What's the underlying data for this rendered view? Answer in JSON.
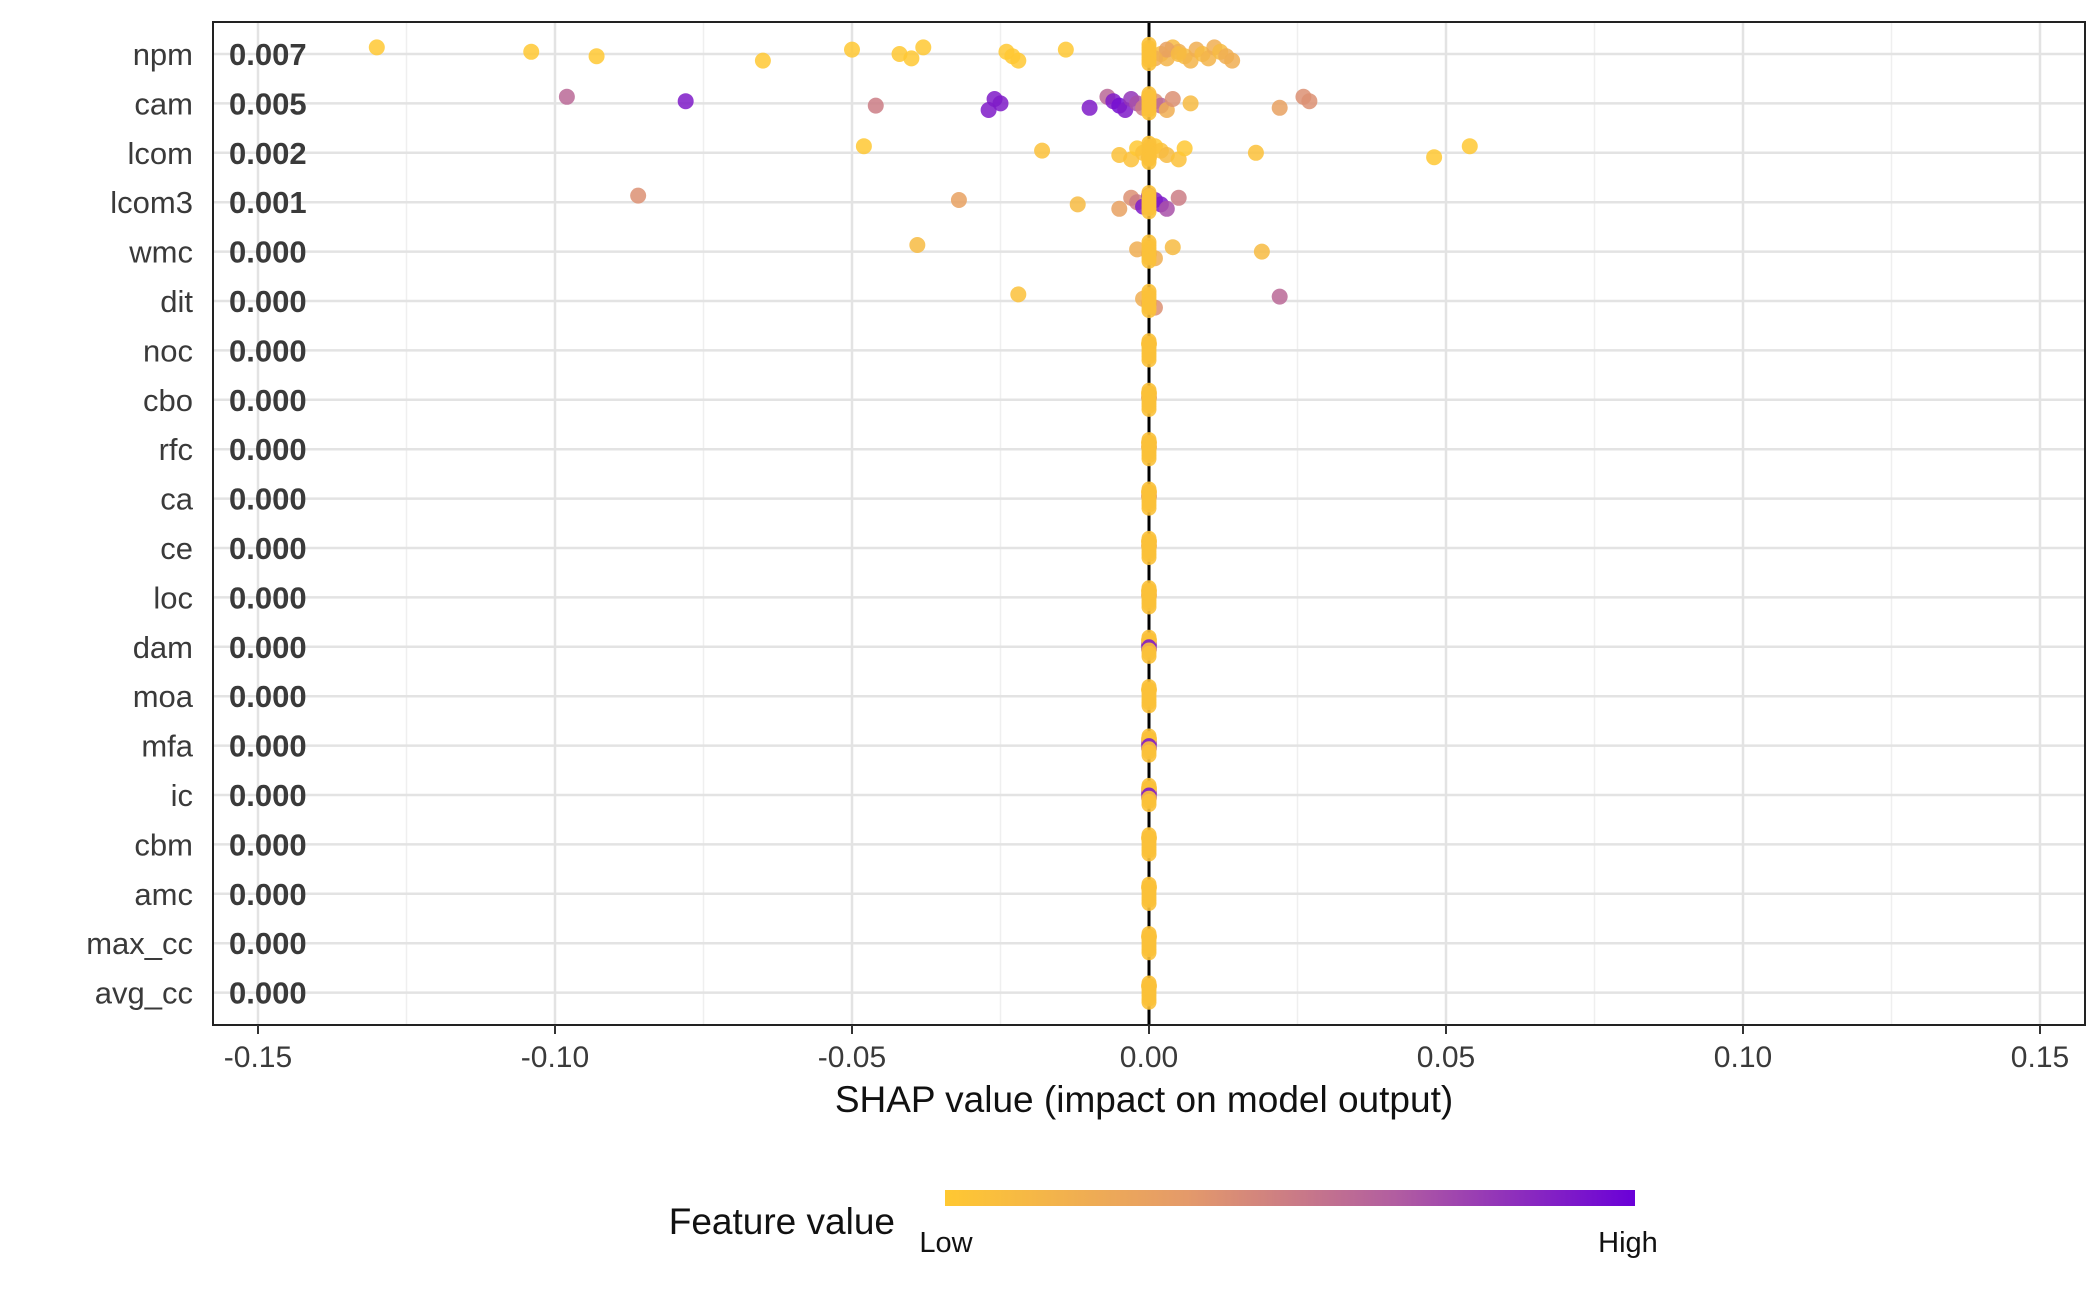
{
  "chart_data": {
    "type": "scatter",
    "subtype": "shap-beeswarm",
    "xlabel": "SHAP value (impact on model output)",
    "xlim": [
      -0.15,
      0.15
    ],
    "x_ticks": [
      -0.15,
      -0.1,
      -0.05,
      0.0,
      0.05,
      0.1,
      0.15
    ],
    "x_tick_labels": [
      "-0.15",
      "-0.10",
      "-0.05",
      "0.00",
      "0.05",
      "0.10",
      "0.15"
    ],
    "grid": true,
    "zero_line": true,
    "legend": {
      "title": "Feature value",
      "low_label": "Low",
      "high_label": "High",
      "placement": "bottom",
      "low_color": "#FFC832",
      "high_color": "#6A00D8"
    },
    "features": [
      {
        "name": "npm",
        "mean_abs_shap": "0.007",
        "points": [
          [
            -0.13,
            0.0
          ],
          [
            -0.104,
            0.0
          ],
          [
            -0.093,
            0.0
          ],
          [
            -0.065,
            0.0
          ],
          [
            -0.05,
            0.0
          ],
          [
            -0.042,
            0.0
          ],
          [
            -0.04,
            0.0
          ],
          [
            -0.038,
            0.0
          ],
          [
            -0.024,
            0.0
          ],
          [
            -0.023,
            0.0
          ],
          [
            -0.022,
            0.0
          ],
          [
            -0.014,
            0.0
          ],
          [
            0.002,
            0.1
          ],
          [
            0.003,
            0.15
          ],
          [
            0.004,
            0.1
          ],
          [
            0.005,
            0.2
          ],
          [
            0.006,
            0.1
          ],
          [
            0.007,
            0.15
          ],
          [
            0.008,
            0.2
          ],
          [
            0.009,
            0.1
          ],
          [
            0.01,
            0.15
          ],
          [
            0.011,
            0.2
          ],
          [
            0.012,
            0.1
          ],
          [
            0.013,
            0.2
          ],
          [
            0.014,
            0.2
          ],
          [
            0.003,
            0.3
          ],
          [
            0.005,
            0.1
          ],
          [
            0.001,
            0.2
          ]
        ]
      },
      {
        "name": "cam",
        "mean_abs_shap": "0.005",
        "points": [
          [
            -0.098,
            0.6
          ],
          [
            -0.078,
            0.9
          ],
          [
            -0.046,
            0.5
          ],
          [
            -0.027,
            0.9
          ],
          [
            -0.026,
            0.9
          ],
          [
            -0.025,
            0.9
          ],
          [
            -0.01,
            0.9
          ],
          [
            -0.007,
            0.6
          ],
          [
            -0.006,
            0.9
          ],
          [
            -0.005,
            0.95
          ],
          [
            -0.004,
            0.9
          ],
          [
            -0.003,
            0.8
          ],
          [
            -0.002,
            0.7
          ],
          [
            -0.001,
            0.5
          ],
          [
            0.0,
            0.3
          ],
          [
            0.001,
            0.4
          ],
          [
            0.002,
            0.6
          ],
          [
            0.003,
            0.2
          ],
          [
            0.004,
            0.4
          ],
          [
            0.007,
            0.1
          ],
          [
            0.022,
            0.3
          ],
          [
            0.026,
            0.4
          ],
          [
            0.027,
            0.4
          ]
        ]
      },
      {
        "name": "lcom",
        "mean_abs_shap": "0.002",
        "points": [
          [
            -0.048,
            0.0
          ],
          [
            -0.018,
            0.05
          ],
          [
            -0.005,
            0.05
          ],
          [
            -0.003,
            0.05
          ],
          [
            -0.002,
            0.0
          ],
          [
            -0.001,
            0.05
          ],
          [
            0.0,
            0.1
          ],
          [
            0.001,
            0.0
          ],
          [
            0.002,
            0.05
          ],
          [
            0.003,
            0.1
          ],
          [
            0.005,
            0.05
          ],
          [
            0.006,
            0.0
          ],
          [
            0.018,
            0.05
          ],
          [
            0.048,
            0.0
          ],
          [
            0.054,
            0.0
          ]
        ]
      },
      {
        "name": "lcom3",
        "mean_abs_shap": "0.001",
        "points": [
          [
            -0.086,
            0.4
          ],
          [
            -0.032,
            0.3
          ],
          [
            -0.012,
            0.1
          ],
          [
            -0.005,
            0.3
          ],
          [
            -0.003,
            0.4
          ],
          [
            -0.002,
            0.5
          ],
          [
            -0.001,
            0.9
          ],
          [
            0.0,
            0.95
          ],
          [
            0.001,
            0.9
          ],
          [
            0.002,
            0.9
          ],
          [
            0.003,
            0.7
          ],
          [
            0.005,
            0.5
          ]
        ]
      },
      {
        "name": "wmc",
        "mean_abs_shap": "0.000",
        "points": [
          [
            -0.039,
            0.1
          ],
          [
            -0.002,
            0.2
          ],
          [
            0.0,
            0.25
          ],
          [
            0.001,
            0.2
          ],
          [
            0.004,
            0.1
          ],
          [
            0.019,
            0.1
          ]
        ]
      },
      {
        "name": "dit",
        "mean_abs_shap": "0.000",
        "points": [
          [
            -0.022,
            0.05
          ],
          [
            -0.001,
            0.2
          ],
          [
            0.0,
            0.3
          ],
          [
            0.001,
            0.4
          ],
          [
            0.022,
            0.6
          ]
        ]
      },
      {
        "name": "noc",
        "mean_abs_shap": "0.000",
        "points": [
          [
            0.0,
            0.05
          ]
        ]
      },
      {
        "name": "cbo",
        "mean_abs_shap": "0.000",
        "points": [
          [
            0.0,
            0.05
          ],
          [
            0.0,
            0.35
          ]
        ]
      },
      {
        "name": "rfc",
        "mean_abs_shap": "0.000",
        "points": [
          [
            0.0,
            0.05
          ],
          [
            0.0,
            0.2
          ]
        ]
      },
      {
        "name": "ca",
        "mean_abs_shap": "0.000",
        "points": [
          [
            0.0,
            0.05
          ],
          [
            0.0,
            0.4
          ]
        ]
      },
      {
        "name": "ce",
        "mean_abs_shap": "0.000",
        "points": [
          [
            0.0,
            0.05
          ],
          [
            0.0,
            0.2
          ]
        ]
      },
      {
        "name": "loc",
        "mean_abs_shap": "0.000",
        "points": [
          [
            0.0,
            0.05
          ],
          [
            0.0,
            0.2
          ]
        ]
      },
      {
        "name": "dam",
        "mean_abs_shap": "0.000",
        "points": [
          [
            0.0,
            0.05
          ],
          [
            0.0,
            0.9
          ],
          [
            0.0,
            0.6
          ]
        ]
      },
      {
        "name": "moa",
        "mean_abs_shap": "0.000",
        "points": [
          [
            0.0,
            0.05
          ]
        ]
      },
      {
        "name": "mfa",
        "mean_abs_shap": "0.000",
        "points": [
          [
            0.0,
            0.05
          ],
          [
            0.0,
            0.9
          ],
          [
            0.0,
            0.6
          ]
        ]
      },
      {
        "name": "ic",
        "mean_abs_shap": "0.000",
        "points": [
          [
            0.0,
            0.05
          ],
          [
            0.0,
            0.9
          ],
          [
            0.0,
            0.5
          ]
        ]
      },
      {
        "name": "cbm",
        "mean_abs_shap": "0.000",
        "points": [
          [
            0.0,
            0.05
          ]
        ]
      },
      {
        "name": "amc",
        "mean_abs_shap": "0.000",
        "points": [
          [
            0.0,
            0.05
          ]
        ]
      },
      {
        "name": "max_cc",
        "mean_abs_shap": "0.000",
        "points": [
          [
            0.0,
            0.05
          ]
        ]
      },
      {
        "name": "avg_cc",
        "mean_abs_shap": "0.000",
        "points": [
          [
            0.0,
            0.05
          ]
        ]
      }
    ]
  }
}
